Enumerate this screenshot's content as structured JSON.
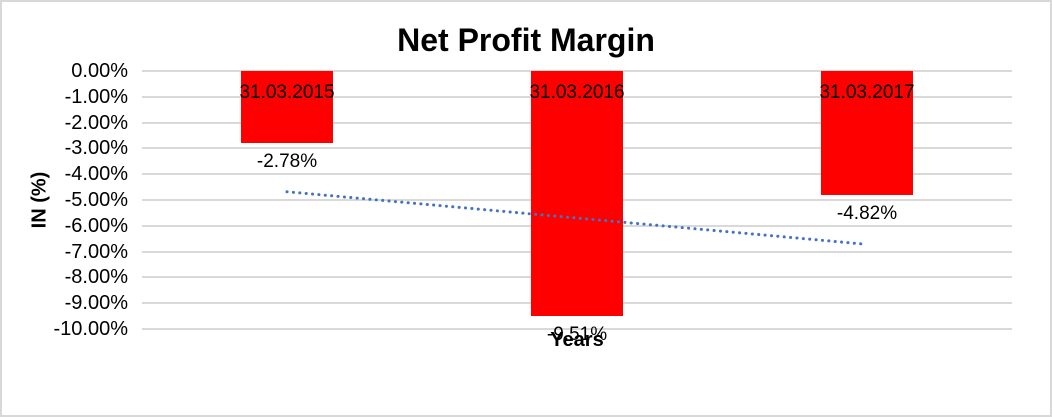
{
  "chart_data": {
    "type": "bar",
    "title": "Net Profit Margin",
    "xlabel": "Years",
    "ylabel": "IN (%)",
    "categories": [
      "31.03.2015",
      "31.03.2016",
      "31.03.2017"
    ],
    "values": [
      -2.78,
      -9.51,
      -4.82
    ],
    "value_labels": [
      "-2.78%",
      "-9.51%",
      "-4.82%"
    ],
    "ytick_labels": [
      "0.00%",
      "-1.00%",
      "-2.00%",
      "-3.00%",
      "-4.00%",
      "-5.00%",
      "-6.00%",
      "-7.00%",
      "-8.00%",
      "-9.00%",
      "-10.00%"
    ],
    "ylim": [
      -10,
      0
    ],
    "ytick_step": 1,
    "grid": true,
    "legend": "none",
    "bar_color": "#ff0000",
    "gridline_color": "#d9d9d9",
    "text_color": "#000000",
    "trendline": {
      "style": "dotted",
      "color": "#4472c4",
      "start_value": -4.68,
      "end_value": -6.72
    }
  }
}
